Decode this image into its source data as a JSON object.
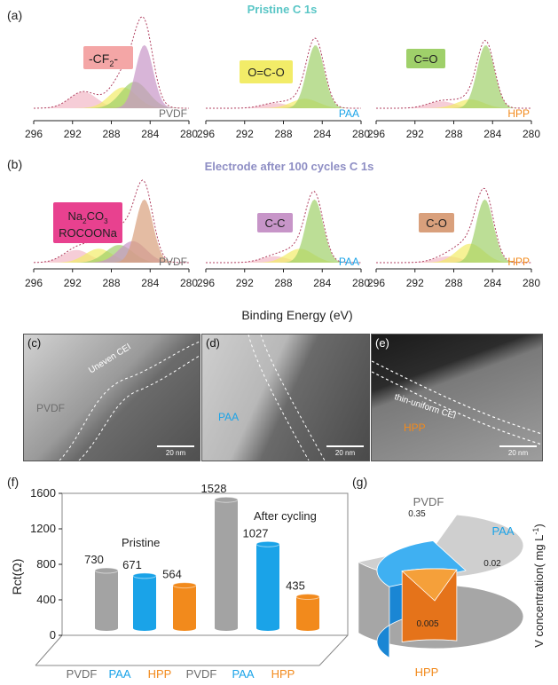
{
  "panels": {
    "a": {
      "letter": "(a)",
      "title": "Pristine  C 1s",
      "title_color": "#59c6c6"
    },
    "b": {
      "letter": "(b)",
      "title": "Electrode after 100 cycles  C 1s",
      "title_color": "#8e8ec4"
    },
    "c": {
      "letter": "(c)",
      "annotation": "Uneven CEI",
      "sample": "PVDF",
      "scale": "20 nm"
    },
    "d": {
      "letter": "(d)",
      "sample": "PAA",
      "scale": "20 nm"
    },
    "e": {
      "letter": "(e)",
      "annotation": "thin-uniform CEI",
      "sample": "HPP",
      "scale": "20 nm"
    },
    "f": {
      "letter": "(f)"
    },
    "g": {
      "letter": "(g)"
    }
  },
  "binders": [
    "PVDF",
    "PAA",
    "HPP"
  ],
  "binder_colors": {
    "PVDF": "#6d6d6d",
    "PAA": "#1aa3e8",
    "HPP": "#f28a1c"
  },
  "xps_axis": {
    "ticks": [
      "296",
      "292",
      "288",
      "284",
      "280"
    ]
  },
  "peak_labels_a": [
    "-CF",
    "2",
    "-",
    "O=C-O",
    "C=O"
  ],
  "peak_labels_b": [
    "Na",
    "2",
    "CO",
    "3",
    "ROCOONa",
    "C-C",
    "C-O"
  ],
  "xlabel": "Binding Energy (eV)",
  "chart_data": [
    {
      "type": "line",
      "panel": "a",
      "title": "Pristine  C 1s",
      "x_axis": "Binding Energy (eV)",
      "xlim": [
        296,
        280
      ],
      "xticks": [
        296,
        292,
        288,
        284,
        280
      ],
      "series": [
        {
          "name": "PVDF",
          "peaks_eV": [
            290.9,
            286.8,
            285.6,
            284.6
          ],
          "relative_heights": [
            0.26,
            0.33,
            0.42,
            1.0
          ]
        },
        {
          "name": "PAA",
          "peaks_eV": [
            288.8,
            285.8,
            284.7
          ],
          "relative_heights": [
            0.08,
            0.15,
            1.0
          ]
        },
        {
          "name": "HPP",
          "peaks_eV": [
            289.3,
            286.3,
            284.7
          ],
          "relative_heights": [
            0.11,
            0.14,
            1.0
          ]
        }
      ],
      "peak_labels": [
        "-CF2-",
        "O=C-O",
        "C=O"
      ]
    },
    {
      "type": "line",
      "panel": "b",
      "title": "Electrode after 100 cycles  C 1s",
      "x_axis": "Binding Energy (eV)",
      "xlim": [
        296,
        280
      ],
      "xticks": [
        296,
        292,
        288,
        284,
        280
      ],
      "series": [
        {
          "name": "PVDF",
          "peaks_eV": [
            291.6,
            289.3,
            287.2,
            285.8,
            284.6
          ],
          "relative_heights": [
            0.2,
            0.22,
            0.28,
            0.34,
            1.0
          ]
        },
        {
          "name": "PAA",
          "peaks_eV": [
            288.9,
            286.3,
            284.8
          ],
          "relative_heights": [
            0.1,
            0.22,
            1.0
          ]
        },
        {
          "name": "HPP",
          "peaks_eV": [
            288.6,
            286.3,
            284.8
          ],
          "relative_heights": [
            0.1,
            0.3,
            1.0
          ]
        }
      ],
      "peak_labels": [
        "Na2CO3 ROCOONa",
        "C-C",
        "C-O"
      ]
    },
    {
      "type": "bar",
      "panel": "f",
      "ylabel": "Rct(Ω)",
      "ylim": [
        0,
        1600
      ],
      "yticks": [
        0,
        400,
        800,
        1200,
        1600
      ],
      "categories": [
        "PVDF",
        "PAA",
        "HPP",
        "PVDF",
        "PAA",
        "HPP"
      ],
      "values": [
        730,
        671,
        564,
        1528,
        1027,
        435
      ],
      "group_labels": [
        "Pristine",
        "After cycling"
      ]
    },
    {
      "type": "pie",
      "panel": "g",
      "ylabel": "V concentration( mg L",
      "ylabel_sup": "-1",
      "ylabel_end": ")",
      "labels": [
        "PVDF",
        "PAA",
        "HPP"
      ],
      "values": [
        0.35,
        0.02,
        0.005
      ],
      "value_labels": [
        "0.35",
        "0.02",
        "0.005"
      ]
    }
  ]
}
